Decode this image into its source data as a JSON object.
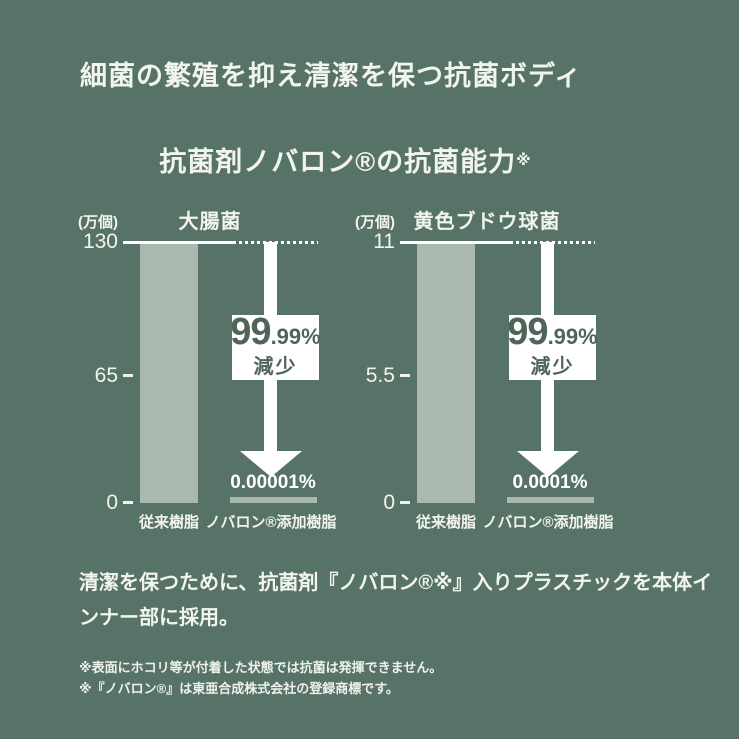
{
  "colors": {
    "background": "#577368",
    "bar": "#aab8b0",
    "text": "#f2f4ee",
    "badge_background": "#ffffff",
    "badge_text": "#50655a",
    "arrow": "#ffffff"
  },
  "header": {
    "title": "細菌の繁殖を抑え清潔を保つ抗菌ボディ"
  },
  "section": {
    "title": "抗菌剤ノバロン®の抗菌能力",
    "title_sup": "※"
  },
  "charts": [
    {
      "unit": "(万個)",
      "name": "大腸菌",
      "ticks": [
        "130",
        "65",
        "0"
      ],
      "reduction_big": "99",
      "reduction_small": ".99%",
      "reduction_word": "減少",
      "result": "0.00001%",
      "x_labels": [
        "従来樹脂",
        "ノバロン®添加樹脂"
      ]
    },
    {
      "unit": "(万個)",
      "name": "黄色ブドウ球菌",
      "ticks": [
        "11",
        "5.5",
        "0"
      ],
      "reduction_big": "99",
      "reduction_small": ".99%",
      "reduction_word": "減少",
      "result": "0.0001%",
      "x_labels": [
        "従来樹脂",
        "ノバロン®添加樹脂"
      ]
    }
  ],
  "body": {
    "lines": [
      "清潔を保つために、抗菌剤『ノバロン®※』入りプラスチックを本体イ",
      "ンナー部に採用。"
    ]
  },
  "footnotes": [
    "※表面にホコリ等が付着した状態では抗菌は発揮できません。",
    "※『ノバロン®』は東亜合成株式会社の登録商標です。"
  ],
  "chart_data": [
    {
      "type": "bar",
      "title": "大腸菌",
      "ylabel": "(万個)",
      "ylim": [
        0,
        130
      ],
      "yticks": [
        0,
        65,
        130
      ],
      "categories": [
        "従来樹脂",
        "ノバロン®添加樹脂"
      ],
      "values": [
        130,
        0
      ],
      "remaining_pct_label": "0.00001%",
      "reduction_label": "99.99%減少",
      "grid": false,
      "legend": "none",
      "baseline_marker": "dotted line at 130 level over ノバロン®添加樹脂 column with downward arrow"
    },
    {
      "type": "bar",
      "title": "黄色ブドウ球菌",
      "ylabel": "(万個)",
      "ylim": [
        0,
        11
      ],
      "yticks": [
        0,
        5.5,
        11
      ],
      "categories": [
        "従来樹脂",
        "ノバロン®添加樹脂"
      ],
      "values": [
        11,
        0
      ],
      "remaining_pct_label": "0.0001%",
      "reduction_label": "99.99%減少",
      "grid": false,
      "legend": "none",
      "baseline_marker": "dotted line at 11 level over ノバロン®添加樹脂 column with downward arrow"
    }
  ]
}
